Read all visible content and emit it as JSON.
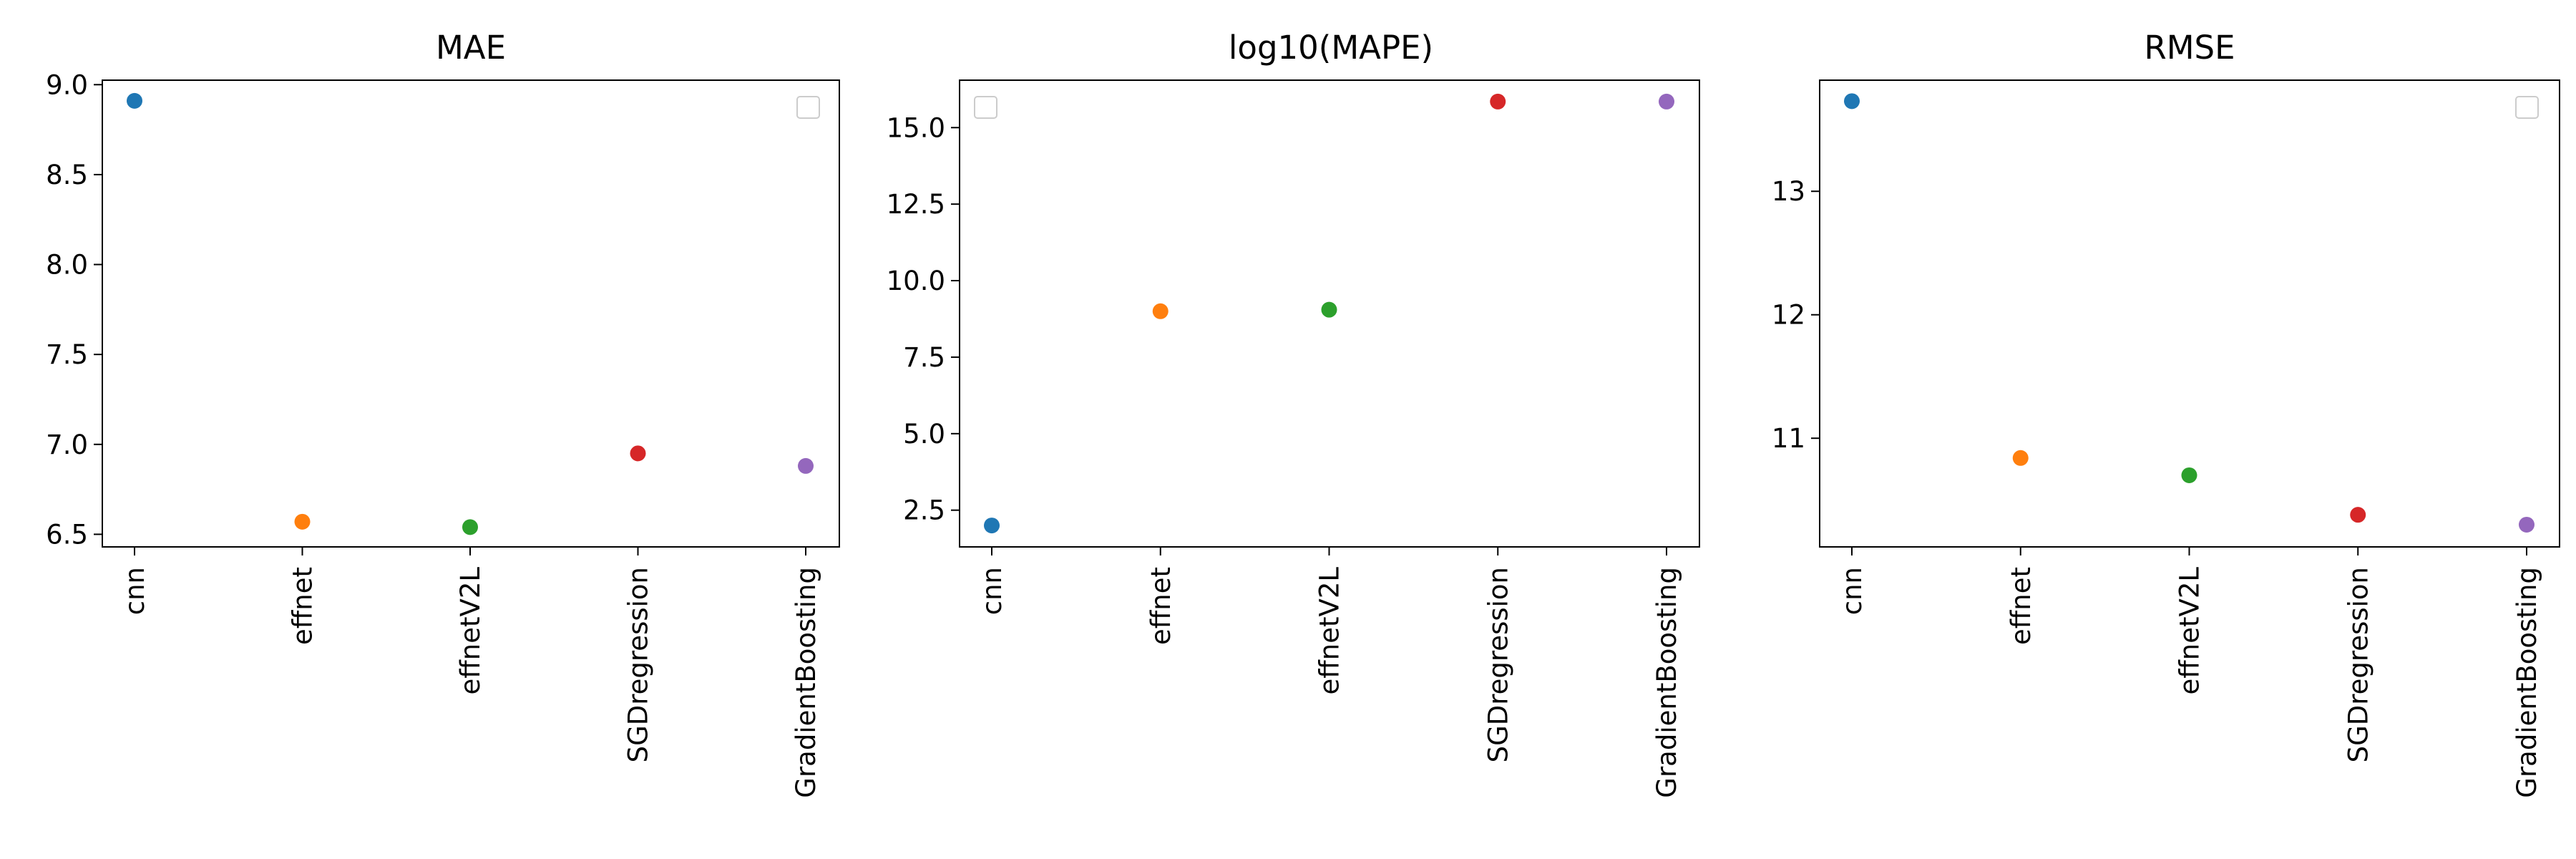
{
  "chart_data": [
    {
      "type": "scatter",
      "title": "MAE",
      "categories": [
        "cnn",
        "effnet",
        "effnetV2L",
        "SGDregression",
        "GradientBoosting"
      ],
      "values": [
        8.91,
        6.57,
        6.54,
        6.95,
        6.88
      ],
      "point_colors": [
        "#1f77b4",
        "#ff7f0e",
        "#2ca02c",
        "#d62728",
        "#9467bd"
      ],
      "yticks": [
        "6.5",
        "7.0",
        "7.5",
        "8.0",
        "8.5",
        "9.0"
      ],
      "ylim": [
        6.43,
        9.025
      ],
      "legend": "top-right",
      "grid": false
    },
    {
      "type": "scatter",
      "title": "log10(MAPE)",
      "categories": [
        "cnn",
        "effnet",
        "effnetV2L",
        "SGDregression",
        "GradientBoosting"
      ],
      "values": [
        2.0,
        9.0,
        9.05,
        15.85,
        15.85
      ],
      "point_colors": [
        "#1f77b4",
        "#ff7f0e",
        "#2ca02c",
        "#d62728",
        "#9467bd"
      ],
      "yticks": [
        "2.5",
        "5.0",
        "7.5",
        "10.0",
        "12.5",
        "15.0"
      ],
      "ylim": [
        1.3,
        16.55
      ],
      "legend": "top-left",
      "grid": false
    },
    {
      "type": "scatter",
      "title": "RMSE",
      "categories": [
        "cnn",
        "effnet",
        "effnetV2L",
        "SGDregression",
        "GradientBoosting"
      ],
      "values": [
        13.73,
        10.84,
        10.7,
        10.38,
        10.3
      ],
      "point_colors": [
        "#1f77b4",
        "#ff7f0e",
        "#2ca02c",
        "#d62728",
        "#9467bd"
      ],
      "yticks": [
        "11",
        "12",
        "13"
      ],
      "ylim": [
        10.12,
        13.9
      ],
      "legend": "top-right",
      "grid": false
    }
  ]
}
